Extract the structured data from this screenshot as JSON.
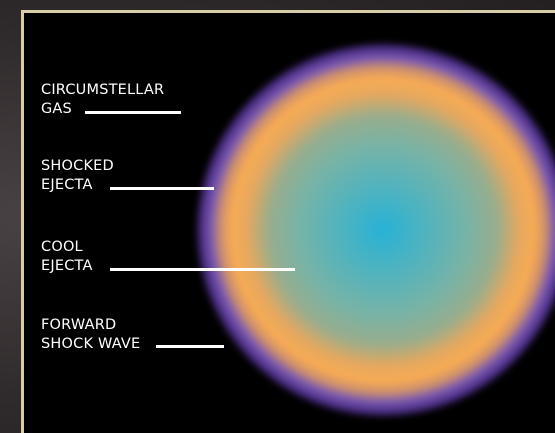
{
  "labels": {
    "circumstellar_gas": {
      "line1": "CIRCUMSTELLAR",
      "line2": "GAS"
    },
    "shocked_ejecta": {
      "line1": "SHOCKED",
      "line2": "EJECTA"
    },
    "cool_ejecta": {
      "line1": "COOL",
      "line2": "EJECTA"
    },
    "forward_shock": {
      "line1": "FORWARD",
      "line2": "SHOCK WAVE"
    }
  },
  "colors": {
    "background": "#000000",
    "frame": "#d9cda8",
    "core": "#27b2d6",
    "inner": "#78b3a6",
    "shock_shell": "#f7ab53",
    "outer_gas": "#4d2f88",
    "label_text": "#ffffff"
  }
}
